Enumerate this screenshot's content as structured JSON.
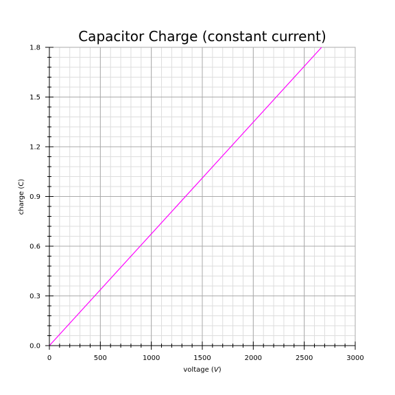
{
  "chart_data": {
    "type": "line",
    "title": "Capacitor Charge (constant current)",
    "xlabel_prefix": "voltage (",
    "xlabel_unit": "V",
    "xlabel_suffix": ")",
    "ylabel": "charge (C)",
    "xlim": [
      0,
      3000
    ],
    "ylim": [
      0,
      1.8
    ],
    "x_ticks": [
      0,
      500,
      1000,
      1500,
      2000,
      2500,
      3000
    ],
    "x_tick_labels": [
      "0",
      "500",
      "1000",
      "1500",
      "2000",
      "2500",
      "3000"
    ],
    "y_ticks": [
      0,
      0.3,
      0.6,
      0.9,
      1.2,
      1.5,
      1.8
    ],
    "y_tick_labels": [
      "0.0",
      "0.3",
      "0.6",
      "0.9",
      "1.2",
      "1.5",
      "1.8"
    ],
    "x_minor_step": 100,
    "y_minor_step": 0.06,
    "grid": true,
    "series": [
      {
        "color": "#ff00ff",
        "x": [
          0,
          2670
        ],
        "y": [
          0,
          1.8
        ]
      }
    ],
    "colors": {
      "major_grid": "#aaaaaa",
      "minor_grid": "#dddddd",
      "axis": "#000000",
      "frame": "#aaaaaa"
    }
  }
}
